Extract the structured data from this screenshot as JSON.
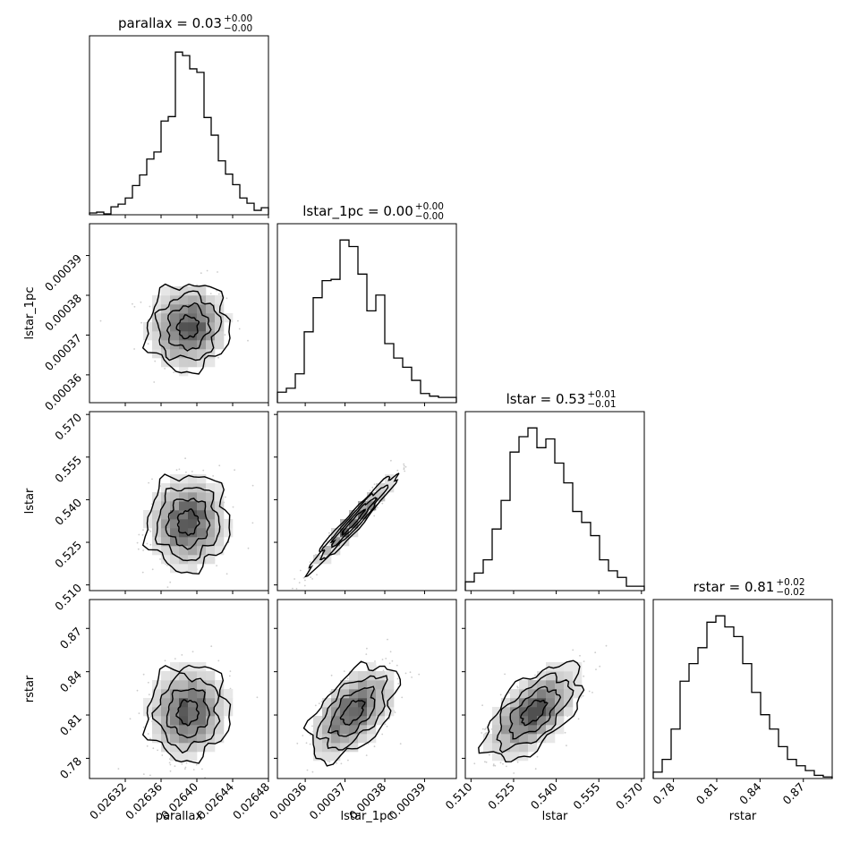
{
  "chart_data": {
    "type": "corner",
    "variables": [
      {
        "key": "parallax",
        "label": "parallax",
        "range": [
          0.02628,
          0.02648
        ],
        "ticks": [
          0.02632,
          0.02636,
          0.0264,
          0.02644,
          0.02648
        ],
        "tick_labels": [
          "0.02632",
          "0.02636",
          "0.02640",
          "0.02644",
          "0.02648"
        ],
        "title_main": "parallax = 0.03",
        "title_sup": "+0.00",
        "title_sub": "−0.00"
      },
      {
        "key": "lstar_1pc",
        "label": "lstar_1pc",
        "range": [
          0.000353,
          0.000398
        ],
        "ticks": [
          0.00036,
          0.00037,
          0.00038,
          0.00039
        ],
        "tick_labels": [
          "0.00036",
          "0.00037",
          "0.00038",
          "0.00039"
        ],
        "title_main": "lstar_1pc = 0.00",
        "title_sup": "+0.00",
        "title_sub": "−0.00"
      },
      {
        "key": "lstar",
        "label": "lstar",
        "range": [
          0.508,
          0.571
        ],
        "ticks": [
          0.51,
          0.525,
          0.54,
          0.555,
          0.57
        ],
        "tick_labels": [
          "0.510",
          "0.525",
          "0.540",
          "0.555",
          "0.570"
        ],
        "title_main": "lstar = 0.53",
        "title_sup": "+0.01",
        "title_sub": "−0.01"
      },
      {
        "key": "rstar",
        "label": "rstar",
        "range": [
          0.766,
          0.89
        ],
        "ticks": [
          0.78,
          0.81,
          0.84,
          0.87
        ],
        "tick_labels": [
          "0.78",
          "0.81",
          "0.84",
          "0.87"
        ],
        "title_main": "rstar = 0.81",
        "title_sup": "+0.02",
        "title_sub": "−0.02"
      }
    ],
    "histograms": [
      [
        2,
        3,
        1,
        9,
        12,
        19,
        33,
        45,
        63,
        71,
        106,
        111,
        184,
        180,
        165,
        161,
        110,
        90,
        61,
        46,
        34,
        19,
        13,
        5,
        8
      ],
      [
        8,
        11,
        22,
        54,
        80,
        93,
        94,
        124,
        119,
        98,
        70,
        82,
        45,
        34,
        27,
        17,
        7,
        5,
        4,
        4
      ],
      [
        4,
        8,
        14,
        28,
        41,
        63,
        70,
        74,
        65,
        69,
        58,
        49,
        36,
        31,
        25,
        14,
        9,
        6,
        2,
        2
      ],
      [
        4,
        12,
        31,
        61,
        72,
        82,
        98,
        102,
        95,
        89,
        72,
        54,
        40,
        31,
        20,
        12,
        8,
        5,
        2,
        1
      ]
    ],
    "covariance": {
      "means": [
        0.02639,
        0.000372,
        0.532,
        0.812
      ],
      "sigmas": [
        2.3e-05,
        5.5e-06,
        0.0085,
        0.0165
      ],
      "correlations": {
        "1_0": 0.05,
        "2_0": 0.04,
        "2_1": 0.97,
        "3_0": 0.05,
        "3_1": 0.55,
        "3_2": 0.6
      }
    },
    "contour_levels": [
      "0.5-sigma",
      "1-sigma",
      "1.5-sigma",
      "2-sigma"
    ],
    "colors": {
      "line": "#000000",
      "scatter": "#6e6e6e"
    }
  }
}
